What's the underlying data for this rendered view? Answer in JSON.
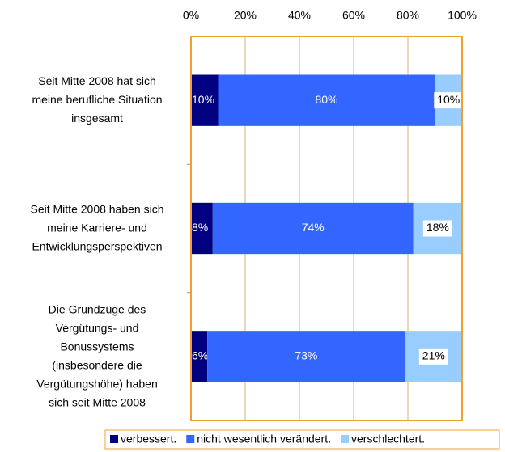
{
  "chart_data": {
    "type": "bar",
    "orientation": "horizontal",
    "stacked": true,
    "categories": [
      "Seit Mitte 2008 hat sich\nmeine berufliche Situation\ninsgesamt",
      "Seit Mitte 2008 haben sich\nmeine Karriere- und\nEntwicklungsperspektiven",
      "Die Grundzüge des\nVergütungs- und\nBonussystems\n(insbesondere die\nVergütungshöhe) haben\nsich seit Mitte 2008"
    ],
    "series": [
      {
        "name": "verbessert.",
        "color": "#000080",
        "values": [
          10,
          8,
          6
        ],
        "value_labels": [
          "10%",
          "8%",
          "6%"
        ]
      },
      {
        "name": "nicht wesentlich verändert.",
        "color": "#3366ff",
        "values": [
          80,
          74,
          73
        ],
        "value_labels": [
          "80%",
          "74%",
          "73%"
        ]
      },
      {
        "name": "verschlechtert.",
        "color": "#99ccff",
        "values": [
          10,
          18,
          21
        ],
        "value_labels": [
          "10%",
          "18%",
          "21%"
        ]
      }
    ],
    "xlim": [
      0,
      100
    ],
    "xticks": [
      {
        "value": 0,
        "label": "0%"
      },
      {
        "value": 20,
        "label": "20%"
      },
      {
        "value": 40,
        "label": "40%"
      },
      {
        "value": 60,
        "label": "60%"
      },
      {
        "value": 80,
        "label": "80%"
      },
      {
        "value": 100,
        "label": "100%"
      }
    ],
    "grid": true,
    "legend": "bottom"
  }
}
